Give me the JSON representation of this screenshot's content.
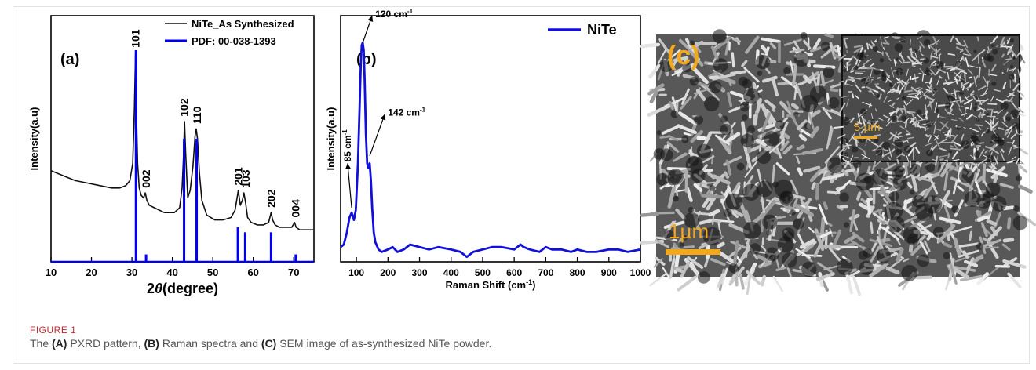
{
  "colors": {
    "xrd_line": "#111111",
    "reference": "#0000ee",
    "raman": "#1010d8",
    "sem_label": "#f1a81b",
    "caption_label": "#c0282d"
  },
  "chart_data": [
    {
      "type": "line",
      "panel_label": "(a)",
      "xlabel_prefix": "2",
      "xlabel_symbol": "θ",
      "xlabel_suffix": "(degree)",
      "ylabel": "Intensity(a.u)",
      "xlim": [
        10,
        75
      ],
      "ylim": [
        0,
        1
      ],
      "x_ticks": [
        10,
        20,
        30,
        40,
        50,
        60,
        70
      ],
      "legend_position": "top-right",
      "series": [
        {
          "name": "NiTe_As Synthesized",
          "color": "#111111",
          "x": [
            10,
            13,
            16,
            19,
            22,
            25,
            27,
            28.5,
            29.5,
            30.2,
            30.6,
            30.9,
            31.1,
            31.4,
            31.8,
            32.3,
            32.9,
            33.3,
            33.7,
            34.3,
            35.5,
            38,
            40.5,
            41.8,
            42.4,
            42.8,
            43,
            43.3,
            43.8,
            44.4,
            45.1,
            45.6,
            45.9,
            46.2,
            46.7,
            47.3,
            48.5,
            50.5,
            52.5,
            54.5,
            55.5,
            56.0,
            56.3,
            56.8,
            57.3,
            57.7,
            58.1,
            58.6,
            59.5,
            61,
            62.5,
            63.8,
            64.4,
            64.8,
            65.4,
            66.5,
            68,
            69.5,
            70.2,
            70.6,
            71.5,
            73,
            75
          ],
          "y": [
            0.37,
            0.35,
            0.33,
            0.32,
            0.31,
            0.3,
            0.3,
            0.31,
            0.33,
            0.4,
            0.62,
            0.85,
            0.62,
            0.4,
            0.3,
            0.27,
            0.26,
            0.28,
            0.25,
            0.23,
            0.22,
            0.2,
            0.2,
            0.22,
            0.3,
            0.44,
            0.57,
            0.44,
            0.26,
            0.29,
            0.39,
            0.51,
            0.54,
            0.5,
            0.36,
            0.25,
            0.19,
            0.17,
            0.17,
            0.18,
            0.21,
            0.26,
            0.29,
            0.23,
            0.25,
            0.28,
            0.24,
            0.18,
            0.16,
            0.15,
            0.15,
            0.16,
            0.2,
            0.17,
            0.15,
            0.14,
            0.14,
            0.14,
            0.16,
            0.14,
            0.13,
            0.13,
            0.13
          ]
        },
        {
          "name": "PDF: 00-038-1393",
          "color": "#0000ee",
          "sticks": [
            {
              "x": 31.0,
              "y": 0.86
            },
            {
              "x": 33.5,
              "y": 0.03
            },
            {
              "x": 42.9,
              "y": 0.5
            },
            {
              "x": 46.0,
              "y": 0.5
            },
            {
              "x": 56.2,
              "y": 0.14
            },
            {
              "x": 58.0,
              "y": 0.12
            },
            {
              "x": 64.4,
              "y": 0.12
            },
            {
              "x": 70.5,
              "y": 0.03
            }
          ]
        }
      ],
      "annotations": [
        {
          "text": "101",
          "x": 30.9,
          "y": 0.87
        },
        {
          "text": "002",
          "x": 33.5,
          "y": 0.3
        },
        {
          "text": "102",
          "x": 42.9,
          "y": 0.59
        },
        {
          "text": "110",
          "x": 46.1,
          "y": 0.56
        },
        {
          "text": "201",
          "x": 56.3,
          "y": 0.31
        },
        {
          "text": "103",
          "x": 58.1,
          "y": 0.3
        },
        {
          "text": "202",
          "x": 64.4,
          "y": 0.22
        },
        {
          "text": "004",
          "x": 70.4,
          "y": 0.18
        }
      ]
    },
    {
      "type": "line",
      "panel_label": "(b)",
      "xlabel": "Raman Shift (cm",
      "xlabel_exp": "-1",
      "xlabel_close": ")",
      "ylabel": "Intensity(a.u)",
      "xlim": [
        50,
        1000
      ],
      "ylim": [
        0,
        1
      ],
      "x_ticks": [
        100,
        200,
        300,
        400,
        500,
        600,
        700,
        800,
        900,
        1000
      ],
      "legend_position": "top-right",
      "series": [
        {
          "name": "NiTe",
          "color": "#1010d8",
          "x": [
            50,
            60,
            70,
            78,
            85,
            92,
            98,
            105,
            110,
            114,
            117,
            120,
            123,
            126,
            130,
            134,
            138,
            142,
            146,
            150,
            155,
            160,
            170,
            180,
            200,
            215,
            230,
            250,
            270,
            300,
            330,
            360,
            400,
            430,
            450,
            470,
            500,
            530,
            560,
            600,
            620,
            630,
            650,
            680,
            700,
            720,
            750,
            780,
            800,
            830,
            860,
            900,
            930,
            960,
            1000
          ],
          "y": [
            0.06,
            0.07,
            0.12,
            0.18,
            0.2,
            0.17,
            0.21,
            0.4,
            0.62,
            0.8,
            0.88,
            0.89,
            0.86,
            0.74,
            0.52,
            0.4,
            0.38,
            0.4,
            0.33,
            0.22,
            0.12,
            0.08,
            0.05,
            0.04,
            0.05,
            0.06,
            0.04,
            0.05,
            0.07,
            0.06,
            0.05,
            0.06,
            0.05,
            0.04,
            0.02,
            0.04,
            0.05,
            0.06,
            0.06,
            0.05,
            0.07,
            0.06,
            0.05,
            0.04,
            0.06,
            0.05,
            0.05,
            0.04,
            0.05,
            0.04,
            0.04,
            0.05,
            0.05,
            0.04,
            0.05
          ]
        }
      ],
      "annotations": [
        {
          "text": "120 cm",
          "exp": "-1",
          "x": 120,
          "y": 0.89,
          "tx": 150,
          "ty": 1.0
        },
        {
          "text": "142 cm",
          "exp": "-1",
          "x": 142,
          "y": 0.43,
          "tx": 190,
          "ty": 0.6
        },
        {
          "text": "85 cm",
          "exp": "-1",
          "x": 85,
          "y": 0.22,
          "tx": 72,
          "ty": 0.4
        }
      ]
    }
  ],
  "sem": {
    "panel_label": "(c)",
    "main_scale": "1µm",
    "inset_scale": "5 µm"
  },
  "caption": {
    "label": "FIGURE 1",
    "parts": [
      "The ",
      "(A)",
      " PXRD pattern, ",
      "(B)",
      " Raman spectra and ",
      "(C)",
      " SEM image of as-synthesized NiTe powder."
    ]
  }
}
